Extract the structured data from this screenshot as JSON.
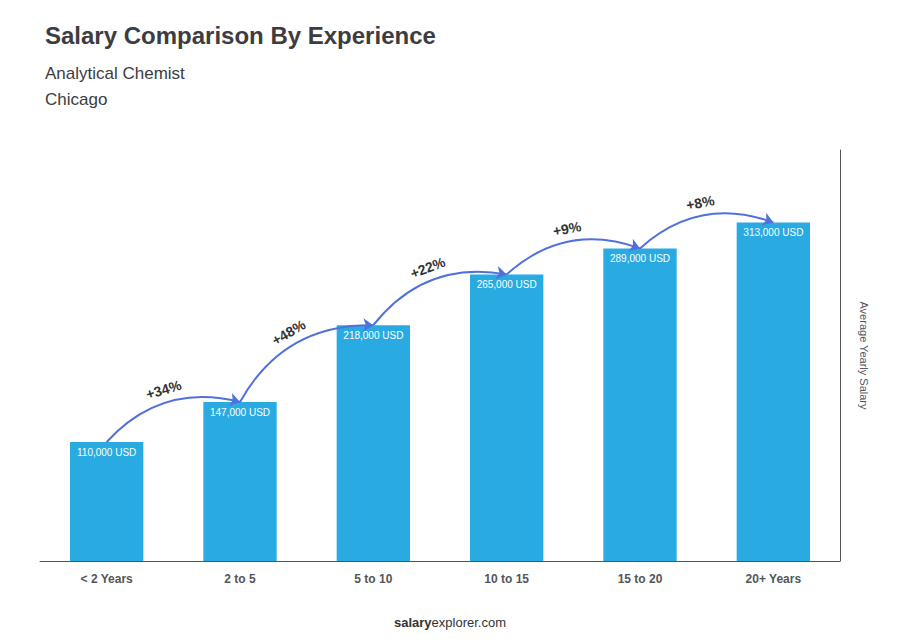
{
  "chart_data": {
    "type": "bar",
    "title": "Salary Comparison By Experience",
    "subtitle": [
      "Analytical Chemist",
      "Chicago"
    ],
    "ylabel": "Average Yearly Salary",
    "categories": [
      "< 2 Years",
      "2 to 5",
      "5 to 10",
      "10 to 15",
      "15 to 20",
      "20+ Years"
    ],
    "values": [
      110000,
      147000,
      218000,
      265000,
      289000,
      313000
    ],
    "value_labels": [
      "110,000 USD",
      "147,000 USD",
      "218,000 USD",
      "265,000 USD",
      "289,000 USD",
      "313,000 USD"
    ],
    "data_labels": true,
    "color": "#29ABE2",
    "ylim": [
      0,
      380000
    ],
    "grid": false,
    "tick_labels": "x",
    "annotations": [
      {
        "text": "+34%",
        "from": "< 2 Years",
        "to": "2 to 5"
      },
      {
        "text": "+48%",
        "from": "2 to 5",
        "to": "5 to 10"
      },
      {
        "text": "+22%",
        "from": "5 to 10",
        "to": "10 to 15"
      },
      {
        "text": "+9%",
        "from": "10 to 15",
        "to": "15 to 20"
      },
      {
        "text": "+8%",
        "from": "15 to 20",
        "to": "20+ Years"
      }
    ],
    "footer": [
      "salary",
      "explorer.com"
    ]
  }
}
